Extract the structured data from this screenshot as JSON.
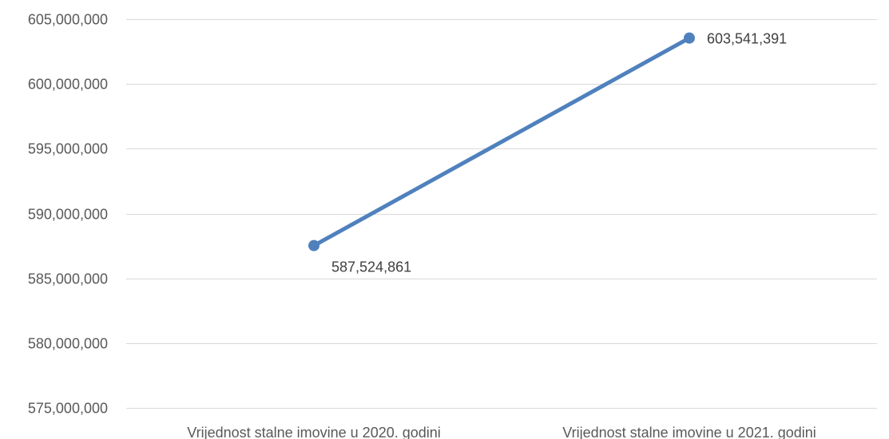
{
  "chart_data": {
    "type": "line",
    "categories": [
      "Vrijednost stalne imovine u 2020. godini",
      "Vrijednost stalne imovine u 2021. godini"
    ],
    "series": [
      {
        "values": [
          587524861,
          603541391
        ],
        "data_labels": [
          "587,524,861",
          "603,541,391"
        ],
        "color": "#4f81bd"
      }
    ],
    "y_ticks": [
      "575,000,000",
      "580,000,000",
      "585,000,000",
      "590,000,000",
      "595,000,000",
      "600,000,000",
      "605,000,000"
    ],
    "ylim": [
      575000000,
      605000000
    ],
    "y_step": 5000000,
    "grid": true,
    "legend": "none",
    "title": "",
    "xlabel": "",
    "ylabel": ""
  }
}
